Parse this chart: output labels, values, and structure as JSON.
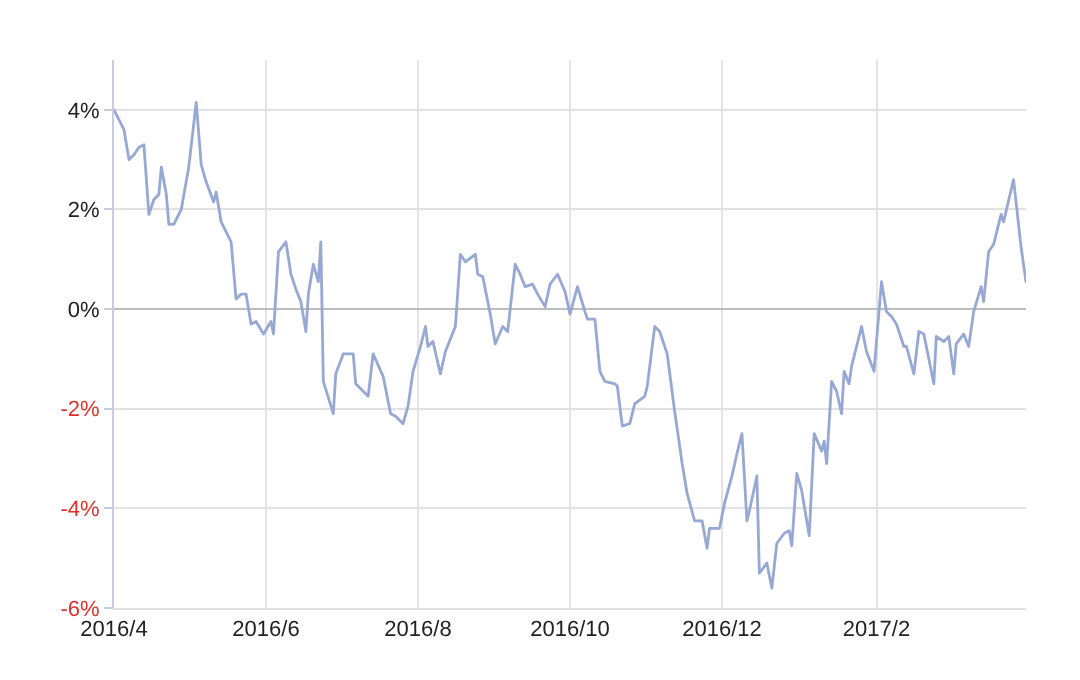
{
  "chart_data": {
    "type": "line",
    "x": [
      "2016-04-01",
      "2016-04-05",
      "2016-04-07",
      "2016-04-09",
      "2016-04-11",
      "2016-04-13",
      "2016-04-15",
      "2016-04-17",
      "2016-04-19",
      "2016-04-20",
      "2016-04-22",
      "2016-04-23",
      "2016-04-25",
      "2016-04-28",
      "2016-05-01",
      "2016-05-04",
      "2016-05-06",
      "2016-05-08",
      "2016-05-11",
      "2016-05-12",
      "2016-05-14",
      "2016-05-18",
      "2016-05-20",
      "2016-05-22",
      "2016-05-24",
      "2016-05-26",
      "2016-05-28",
      "2016-05-31",
      "2016-06-03",
      "2016-06-04",
      "2016-06-06",
      "2016-06-09",
      "2016-06-11",
      "2016-06-13",
      "2016-06-15",
      "2016-06-17",
      "2016-06-18",
      "2016-06-20",
      "2016-06-22",
      "2016-06-23",
      "2016-06-24",
      "2016-06-28",
      "2016-06-29",
      "2016-07-02",
      "2016-07-06",
      "2016-07-07",
      "2016-07-10",
      "2016-07-12",
      "2016-07-14",
      "2016-07-18",
      "2016-07-21",
      "2016-07-23",
      "2016-07-26",
      "2016-07-28",
      "2016-07-30",
      "2016-08-02",
      "2016-08-04",
      "2016-08-05",
      "2016-08-07",
      "2016-08-10",
      "2016-08-12",
      "2016-08-16",
      "2016-08-18",
      "2016-08-20",
      "2016-08-24",
      "2016-08-25",
      "2016-08-27",
      "2016-08-30",
      "2016-09-01",
      "2016-09-04",
      "2016-09-06",
      "2016-09-09",
      "2016-09-11",
      "2016-09-13",
      "2016-09-16",
      "2016-09-18",
      "2016-09-21",
      "2016-09-23",
      "2016-09-26",
      "2016-09-29",
      "2016-10-01",
      "2016-10-04",
      "2016-10-07",
      "2016-10-08",
      "2016-10-11",
      "2016-10-13",
      "2016-10-15",
      "2016-10-19",
      "2016-10-20",
      "2016-10-22",
      "2016-10-25",
      "2016-10-27",
      "2016-10-31",
      "2016-11-01",
      "2016-11-04",
      "2016-11-06",
      "2016-11-09",
      "2016-11-12",
      "2016-11-15",
      "2016-11-17",
      "2016-11-20",
      "2016-11-23",
      "2016-11-25",
      "2016-11-26",
      "2016-11-30",
      "2016-12-02",
      "2016-12-05",
      "2016-12-07",
      "2016-12-09",
      "2016-12-11",
      "2016-12-12",
      "2016-12-15",
      "2016-12-16",
      "2016-12-19",
      "2016-12-21",
      "2016-12-23",
      "2016-12-26",
      "2016-12-28",
      "2016-12-29",
      "2016-12-31",
      "2017-01-02",
      "2017-01-05",
      "2017-01-07",
      "2017-01-10",
      "2017-01-11",
      "2017-01-12",
      "2017-01-14",
      "2017-01-16",
      "2017-01-18",
      "2017-01-19",
      "2017-01-21",
      "2017-01-22",
      "2017-01-26",
      "2017-01-28",
      "2017-01-31",
      "2017-02-03",
      "2017-02-05",
      "2017-02-07",
      "2017-02-09",
      "2017-02-12",
      "2017-02-13",
      "2017-02-16",
      "2017-02-18",
      "2017-02-20",
      "2017-02-24",
      "2017-02-25",
      "2017-02-28",
      "2017-03-02",
      "2017-03-04",
      "2017-03-05",
      "2017-03-08",
      "2017-03-10",
      "2017-03-12",
      "2017-03-15",
      "2017-03-16",
      "2017-03-18",
      "2017-03-20",
      "2017-03-23",
      "2017-03-24",
      "2017-03-28",
      "2017-03-31",
      "2017-04-02"
    ],
    "series": [
      {
        "color": "#98a8d4",
        "values": [
          4.0,
          3.6,
          3.0,
          3.1,
          3.25,
          3.3,
          1.9,
          2.2,
          2.3,
          2.85,
          2.3,
          1.7,
          1.7,
          2.0,
          2.85,
          4.15,
          2.9,
          2.55,
          2.15,
          2.35,
          1.75,
          1.35,
          0.2,
          0.3,
          0.3,
          -0.3,
          -0.25,
          -0.5,
          -0.25,
          -0.5,
          1.15,
          1.35,
          0.7,
          0.4,
          0.15,
          -0.45,
          0.3,
          0.9,
          0.55,
          1.35,
          -1.45,
          -2.1,
          -1.3,
          -0.9,
          -0.9,
          -1.5,
          -1.65,
          -1.75,
          -0.9,
          -1.35,
          -2.1,
          -2.15,
          -2.3,
          -1.95,
          -1.25,
          -0.75,
          -0.35,
          -0.75,
          -0.65,
          -1.3,
          -0.85,
          -0.35,
          1.1,
          0.95,
          1.1,
          0.7,
          0.65,
          -0.1,
          -0.7,
          -0.35,
          -0.45,
          0.9,
          0.7,
          0.45,
          0.5,
          0.3,
          0.05,
          0.5,
          0.7,
          0.35,
          -0.1,
          0.45,
          -0.05,
          -0.2,
          -0.2,
          -1.25,
          -1.45,
          -1.5,
          -1.55,
          -2.35,
          -2.3,
          -1.9,
          -1.75,
          -1.55,
          -0.35,
          -0.45,
          -0.9,
          -2.05,
          -3.1,
          -3.7,
          -4.25,
          -4.25,
          -4.8,
          -4.4,
          -4.4,
          -3.9,
          -3.35,
          -2.9,
          -2.5,
          -4.25,
          -4.05,
          -3.35,
          -5.3,
          -5.1,
          -5.6,
          -4.7,
          -4.5,
          -4.45,
          -4.75,
          -3.3,
          -3.65,
          -4.55,
          -2.5,
          -2.85,
          -2.65,
          -3.1,
          -1.45,
          -1.65,
          -2.1,
          -1.25,
          -1.5,
          -1.15,
          -0.35,
          -0.85,
          -1.25,
          0.55,
          -0.05,
          -0.15,
          -0.3,
          -0.75,
          -0.75,
          -1.3,
          -0.45,
          -0.5,
          -1.5,
          -0.55,
          -0.65,
          -0.55,
          -1.3,
          -0.7,
          -0.5,
          -0.75,
          -0.05,
          0.45,
          0.15,
          1.15,
          1.3,
          1.9,
          1.75,
          2.6,
          1.25,
          0.55
        ]
      }
    ],
    "xlim": [
      "2016-04-01",
      "2017-04-02"
    ],
    "xticks": [
      {
        "value": "2016-04-01",
        "label": "2016/4"
      },
      {
        "value": "2016-06-01",
        "label": "2016/6"
      },
      {
        "value": "2016-08-01",
        "label": "2016/8"
      },
      {
        "value": "2016-10-01",
        "label": "2016/10"
      },
      {
        "value": "2016-12-01",
        "label": "2016/12"
      },
      {
        "value": "2017-02-01",
        "label": "2017/2"
      }
    ],
    "ylim": [
      -6,
      5
    ],
    "yticks": [
      {
        "value": -6,
        "label": "-6%"
      },
      {
        "value": -4,
        "label": "-4%"
      },
      {
        "value": -2,
        "label": "-2%"
      },
      {
        "value": 0,
        "label": "0%"
      },
      {
        "value": 2,
        "label": "2%"
      },
      {
        "value": 4,
        "label": "4%"
      }
    ],
    "grid": true,
    "marker": "none",
    "line_style": "solid"
  }
}
